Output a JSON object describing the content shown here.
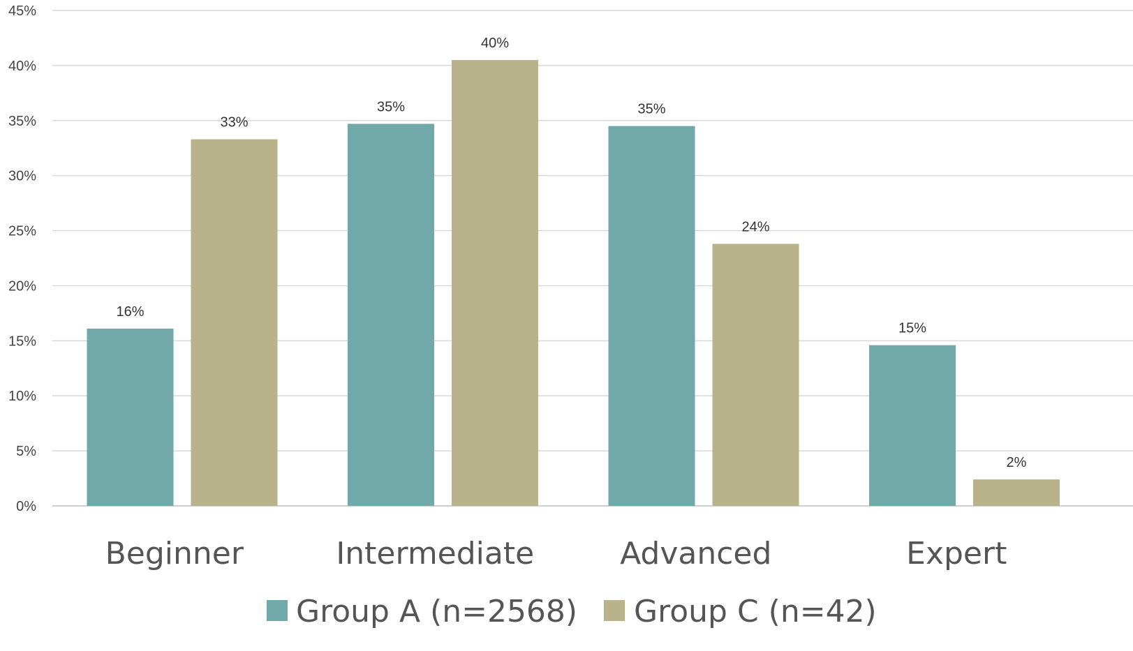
{
  "chart_data": {
    "type": "bar",
    "categories": [
      "Beginner",
      "Intermediate",
      "Advanced",
      "Expert"
    ],
    "series": [
      {
        "name": "Group A (n=2568)",
        "color": "#71a9aa",
        "values": [
          16.1,
          34.7,
          34.5,
          14.6
        ],
        "labels": [
          "16%",
          "35%",
          "35%",
          "15%"
        ]
      },
      {
        "name": "Group C (n=42)",
        "color": "#b8b38a",
        "values": [
          33.3,
          40.5,
          23.8,
          2.4
        ],
        "labels": [
          "33%",
          "40%",
          "24%",
          "2%"
        ]
      }
    ],
    "ylim": [
      0,
      45
    ],
    "yticks": [
      0,
      5,
      10,
      15,
      20,
      25,
      30,
      35,
      40,
      45
    ],
    "ytick_labels": [
      "0%",
      "5%",
      "10%",
      "15%",
      "20%",
      "25%",
      "30%",
      "35%",
      "40%",
      "45%"
    ],
    "grid": true,
    "legend_position": "bottom"
  }
}
